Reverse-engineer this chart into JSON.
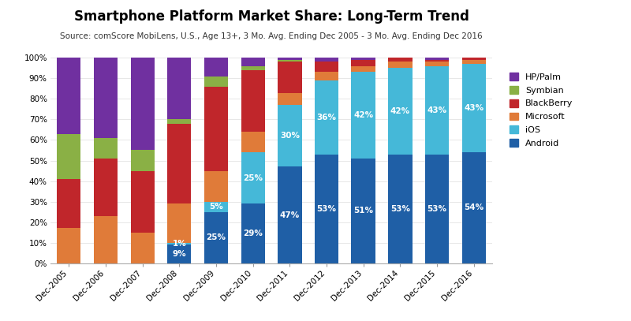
{
  "title": "Smartphone Platform Market Share: Long-Term Trend",
  "subtitle": "Source: comScore MobiLens, U.S., Age 13+, 3 Mo. Avg. Ending Dec 2005 - 3 Mo. Avg. Ending Dec 2016",
  "categories": [
    "Dec-2005",
    "Dec-2006",
    "Dec-2007",
    "Dec-2008",
    "Dec-2009",
    "Dec-2010",
    "Dec-2011",
    "Dec-2012",
    "Dec-2013",
    "Dec-2014",
    "Dec-2015",
    "Dec-2016"
  ],
  "series": {
    "Android": [
      0,
      0,
      0,
      9,
      25,
      29,
      47,
      53,
      51,
      53,
      53,
      54
    ],
    "iOS": [
      0,
      0,
      0,
      1,
      5,
      25,
      30,
      36,
      42,
      42,
      43,
      43
    ],
    "Microsoft": [
      17,
      23,
      15,
      19,
      15,
      10,
      6,
      4,
      3,
      3,
      2,
      2
    ],
    "BlackBerry": [
      24,
      28,
      30,
      39,
      41,
      30,
      15,
      5,
      3,
      2,
      1,
      1
    ],
    "Symbian": [
      22,
      10,
      10,
      2,
      5,
      2,
      1,
      0,
      0,
      0,
      0,
      0
    ],
    "HP/Palm": [
      37,
      39,
      45,
      30,
      9,
      4,
      1,
      2,
      1,
      0,
      1,
      0
    ]
  },
  "colors": {
    "Android": "#1f5fa6",
    "iOS": "#45b8d8",
    "Microsoft": "#e07b39",
    "BlackBerry": "#c0262b",
    "Symbian": "#8ab045",
    "HP/Palm": "#7030a0"
  },
  "android_labels": [
    "",
    "",
    "",
    "9%",
    "25%",
    "29%",
    "47%",
    "53%",
    "51%",
    "53%",
    "53%",
    "54%"
  ],
  "ios_labels": [
    "",
    "",
    "",
    "1%",
    "5%",
    "25%",
    "30%",
    "36%",
    "42%",
    "42%",
    "43%",
    "43%"
  ],
  "ylim": [
    0,
    100
  ],
  "ytick_labels": [
    "0%",
    "10%",
    "20%",
    "30%",
    "40%",
    "50%",
    "60%",
    "70%",
    "80%",
    "90%",
    "100%"
  ],
  "legend_order": [
    "HP/Palm",
    "Symbian",
    "BlackBerry",
    "Microsoft",
    "iOS",
    "Android"
  ],
  "figsize": [
    8.0,
    4.07
  ],
  "dpi": 100,
  "title_fontsize": 12,
  "subtitle_fontsize": 7.5,
  "label_fontsize": 7.5,
  "tick_fontsize": 7.5,
  "legend_fontsize": 8,
  "bar_width": 0.65
}
